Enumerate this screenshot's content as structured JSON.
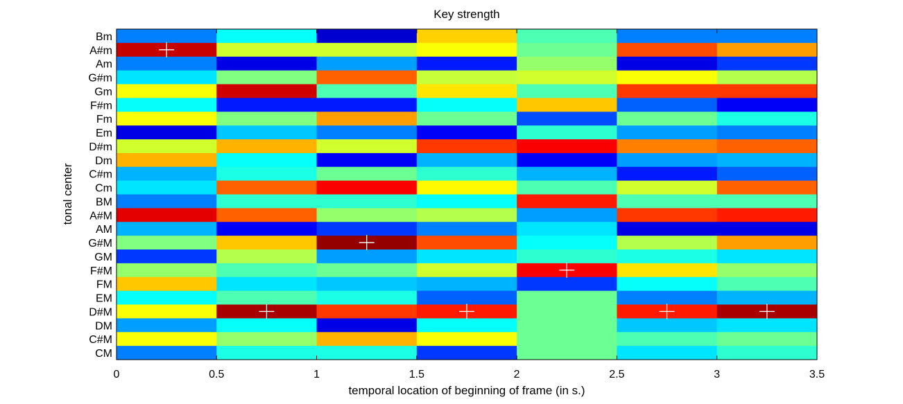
{
  "chart_data": {
    "type": "heatmap",
    "title": "Key strength",
    "xlabel": "temporal location of beginning of frame (in s.)",
    "ylabel": "tonal center",
    "x_ticks": [
      "0",
      "0.5",
      "1",
      "1.5",
      "2",
      "2.5",
      "3",
      "3.5"
    ],
    "xlim": [
      0,
      3.5
    ],
    "frame_starts": [
      0,
      0.5,
      1,
      1.5,
      2,
      2.5,
      3
    ],
    "frame_length": 0.5,
    "rows_top_to_bottom": [
      "Bm",
      "A#m",
      "Am",
      "G#m",
      "Gm",
      "F#m",
      "Fm",
      "Em",
      "D#m",
      "Dm",
      "C#m",
      "Cm",
      "BM",
      "A#M",
      "AM",
      "G#M",
      "GM",
      "F#M",
      "FM",
      "EM",
      "D#M",
      "DM",
      "C#M",
      "CM"
    ],
    "colormap": "jet",
    "value_range": [
      0,
      1
    ],
    "values_top_to_bottom": [
      [
        0.25,
        0.38,
        0.08,
        0.67,
        0.45,
        0.25,
        0.25
      ],
      [
        0.93,
        0.58,
        0.58,
        0.62,
        0.48,
        0.8,
        0.72
      ],
      [
        0.25,
        0.1,
        0.28,
        0.15,
        0.52,
        0.1,
        0.18
      ],
      [
        0.35,
        0.5,
        0.78,
        0.57,
        0.58,
        0.62,
        0.55
      ],
      [
        0.62,
        0.92,
        0.45,
        0.65,
        0.45,
        0.82,
        0.82
      ],
      [
        0.38,
        0.15,
        0.15,
        0.38,
        0.68,
        0.22,
        0.12
      ],
      [
        0.62,
        0.5,
        0.72,
        0.48,
        0.2,
        0.48,
        0.4
      ],
      [
        0.1,
        0.32,
        0.25,
        0.12,
        0.42,
        0.28,
        0.25
      ],
      [
        0.58,
        0.7,
        0.58,
        0.82,
        0.88,
        0.75,
        0.78
      ],
      [
        0.7,
        0.38,
        0.12,
        0.3,
        0.12,
        0.28,
        0.3
      ],
      [
        0.3,
        0.4,
        0.48,
        0.42,
        0.3,
        0.15,
        0.22
      ],
      [
        0.35,
        0.78,
        0.88,
        0.63,
        0.45,
        0.58,
        0.78
      ],
      [
        0.25,
        0.42,
        0.42,
        0.38,
        0.85,
        0.45,
        0.45
      ],
      [
        0.9,
        0.78,
        0.52,
        0.55,
        0.28,
        0.82,
        0.85
      ],
      [
        0.3,
        0.12,
        0.18,
        0.25,
        0.35,
        0.1,
        0.1
      ],
      [
        0.5,
        0.68,
        0.98,
        0.8,
        0.38,
        0.55,
        0.72
      ],
      [
        0.18,
        0.55,
        0.28,
        0.35,
        0.42,
        0.4,
        0.35
      ],
      [
        0.52,
        0.45,
        0.48,
        0.58,
        0.88,
        0.65,
        0.52
      ],
      [
        0.68,
        0.35,
        0.32,
        0.3,
        0.18,
        0.38,
        0.45
      ],
      [
        0.38,
        0.45,
        0.4,
        0.22,
        0.48,
        0.25,
        0.3
      ],
      [
        0.62,
        0.96,
        0.82,
        0.85,
        0.48,
        0.85,
        0.96
      ],
      [
        0.28,
        0.38,
        0.1,
        0.38,
        0.48,
        0.32,
        0.35
      ],
      [
        0.62,
        0.52,
        0.7,
        0.62,
        0.48,
        0.45,
        0.48
      ],
      [
        0.25,
        0.4,
        0.4,
        0.18,
        0.48,
        0.35,
        0.42
      ]
    ],
    "max_markers": [
      {
        "frame_start": 0,
        "key": "A#m"
      },
      {
        "frame_start": 0.5,
        "key": "D#M"
      },
      {
        "frame_start": 1,
        "key": "G#M"
      },
      {
        "frame_start": 1.5,
        "key": "D#M"
      },
      {
        "frame_start": 2,
        "key": "F#M"
      },
      {
        "frame_start": 2.5,
        "key": "D#M"
      },
      {
        "frame_start": 3,
        "key": "D#M"
      }
    ]
  }
}
